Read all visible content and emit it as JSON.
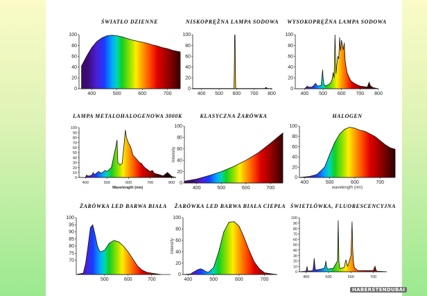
{
  "watermark": "HABERSTENDUBAI",
  "chart_data": [
    {
      "id": "c1",
      "type": "area",
      "title": "ŚWIATŁO DZIENNE",
      "xlabel": "",
      "ylabel": "",
      "xlim": [
        350,
        750
      ],
      "ylim": [
        0,
        100
      ],
      "xticks": [
        400,
        500,
        600,
        700
      ],
      "yticks": [
        0,
        20,
        40,
        60,
        80,
        100
      ],
      "series": [
        {
          "x": [
            360,
            380,
            400,
            420,
            440,
            460,
            480,
            500,
            520,
            540,
            560,
            580,
            600,
            620,
            640,
            660,
            680,
            700,
            720,
            740,
            750
          ],
          "values": [
            42,
            60,
            76,
            87,
            94,
            98,
            99,
            98,
            96,
            93,
            90,
            88,
            86,
            84,
            81,
            79,
            76,
            74,
            71,
            69,
            68
          ]
        }
      ]
    },
    {
      "id": "c2",
      "type": "area",
      "title": "NISKOPRĘŻNA LAMPA SODOWA",
      "xlabel": "",
      "ylabel": "",
      "xlim": [
        350,
        800
      ],
      "ylim": [
        0,
        100
      ],
      "xticks": [
        400,
        500,
        600,
        700,
        800
      ],
      "yticks": [
        0,
        20,
        40,
        60,
        80,
        100
      ],
      "series": [
        {
          "x": [
            350,
            585,
            587,
            589,
            590,
            591,
            593,
            595,
            760,
            765,
            768,
            771,
            775,
            800
          ],
          "values": [
            0.5,
            0.5,
            30,
            98,
            100,
            98,
            30,
            0.5,
            0.5,
            1.5,
            2.5,
            1.5,
            0.5,
            0.5
          ]
        }
      ]
    },
    {
      "id": "c3",
      "type": "area",
      "title": "WYSOKOPRĘŻNA LAMPA SODOWA",
      "xlabel": "",
      "ylabel": "",
      "xlim": [
        350,
        800
      ],
      "ylim": [
        0,
        100
      ],
      "xticks": [
        400,
        500,
        600,
        700,
        800
      ],
      "yticks": [
        0,
        20,
        40,
        60,
        80,
        100
      ],
      "series": [
        {
          "x": [
            350,
            400,
            410,
            415,
            420,
            440,
            450,
            455,
            460,
            465,
            470,
            490,
            495,
            498,
            500,
            505,
            510,
            515,
            520,
            540,
            550,
            555,
            560,
            565,
            570,
            575,
            580,
            585,
            590,
            595,
            600,
            605,
            610,
            615,
            620,
            625,
            630,
            640,
            650,
            660,
            680,
            700,
            720,
            740,
            745,
            750,
            755,
            770,
            800
          ],
          "values": [
            0,
            0,
            3,
            5,
            3,
            3,
            6,
            8,
            10,
            7,
            5,
            6,
            25,
            35,
            22,
            8,
            6,
            5,
            6,
            10,
            18,
            30,
            20,
            100,
            28,
            45,
            60,
            55,
            95,
            70,
            90,
            80,
            72,
            85,
            50,
            40,
            30,
            22,
            15,
            12,
            8,
            5,
            4,
            3,
            8,
            12,
            6,
            2,
            0
          ]
        }
      ]
    },
    {
      "id": "c4",
      "type": "area",
      "title": "LAMPA METALOHALOGENOWA 3000K",
      "xlabel": "Wavelength (nm)",
      "ylabel": "",
      "xlim": [
        370,
        820
      ],
      "ylim": [
        0,
        100
      ],
      "xticks": [
        400,
        500,
        600,
        700,
        800
      ],
      "yticks": [
        0,
        10,
        20,
        30,
        40,
        50,
        60,
        70,
        80,
        90,
        100
      ],
      "series": [
        {
          "x": [
            370,
            400,
            405,
            410,
            420,
            430,
            436,
            440,
            450,
            460,
            470,
            480,
            490,
            500,
            510,
            520,
            530,
            535,
            540,
            546,
            550,
            560,
            570,
            575,
            580,
            585,
            590,
            600,
            605,
            610,
            620,
            630,
            640,
            650,
            660,
            670,
            680,
            690,
            700,
            710,
            720,
            740,
            760,
            780,
            800,
            820
          ],
          "values": [
            0,
            0,
            5,
            3,
            3,
            5,
            10,
            6,
            8,
            12,
            9,
            10,
            14,
            12,
            16,
            20,
            40,
            50,
            60,
            75,
            30,
            25,
            28,
            50,
            70,
            95,
            80,
            68,
            65,
            60,
            45,
            40,
            35,
            30,
            28,
            22,
            18,
            15,
            12,
            14,
            8,
            6,
            3,
            10,
            2,
            0
          ]
        }
      ]
    },
    {
      "id": "c5",
      "type": "area",
      "title": "KLASYCZNA ŻARÓWKA",
      "xlabel": "",
      "ylabel": "Intensity",
      "xlim": [
        350,
        750
      ],
      "ylim": [
        0,
        100
      ],
      "xticks": [
        400,
        500,
        600,
        700
      ],
      "yticks": [
        0,
        20,
        40,
        60,
        80,
        100
      ],
      "series": [
        {
          "x": [
            350,
            400,
            450,
            500,
            550,
            600,
            650,
            700,
            750
          ],
          "values": [
            3,
            7,
            13,
            20,
            29,
            40,
            53,
            70,
            88
          ]
        }
      ]
    },
    {
      "id": "c6",
      "type": "area",
      "title": "HALOGEN",
      "xlabel": "wavelength (nm)",
      "ylabel": "",
      "xlim": [
        380,
        760
      ],
      "ylim": [
        0,
        100
      ],
      "xticks": [
        400,
        500,
        600,
        700
      ],
      "yticks": [
        0,
        20,
        40,
        60,
        80,
        100
      ],
      "series": [
        {
          "x": [
            380,
            420,
            450,
            480,
            500,
            520,
            540,
            560,
            580,
            600,
            620,
            640,
            660,
            680,
            700,
            720,
            740,
            760
          ],
          "values": [
            0,
            2,
            6,
            20,
            45,
            68,
            85,
            94,
            98,
            96,
            92,
            90,
            85,
            80,
            72,
            64,
            58,
            55
          ]
        }
      ]
    },
    {
      "id": "c7",
      "type": "area",
      "title": "ŻARÓWKA LED BARWA BIAŁA",
      "xlabel": "",
      "ylabel": "",
      "xlim": [
        380,
        780
      ],
      "ylim": [
        60,
        100
      ],
      "xticks": [
        500,
        600,
        700
      ],
      "yticks": [
        70,
        75,
        80,
        85,
        90,
        95,
        100
      ],
      "series": [
        {
          "x": [
            380,
            410,
            420,
            430,
            440,
            450,
            460,
            470,
            480,
            500,
            520,
            540,
            560,
            580,
            600,
            620,
            640,
            660,
            680,
            700,
            720,
            740
          ],
          "values": [
            60,
            61,
            68,
            80,
            93,
            95,
            88,
            80,
            76,
            77,
            82,
            84,
            83,
            80,
            76,
            71,
            66,
            63,
            61.5,
            61,
            60.5,
            60
          ]
        }
      ]
    },
    {
      "id": "c8",
      "type": "area",
      "title": "ŻARÓWKA LED BARWA BIAŁA CIEPŁA",
      "xlabel": "",
      "ylabel": "Intensity",
      "xlim": [
        380,
        750
      ],
      "ylim": [
        0,
        100
      ],
      "xticks": [
        400,
        500,
        600,
        700
      ],
      "yticks": [
        0,
        20,
        40,
        60,
        80,
        100
      ],
      "series": [
        {
          "x": [
            380,
            410,
            420,
            440,
            450,
            460,
            470,
            480,
            500,
            520,
            540,
            560,
            580,
            600,
            620,
            640,
            660,
            680,
            700,
            730,
            750
          ],
          "values": [
            0,
            1,
            4,
            9,
            10,
            8,
            5,
            4,
            12,
            40,
            75,
            92,
            93,
            85,
            65,
            42,
            22,
            10,
            3,
            1,
            0
          ]
        }
      ]
    },
    {
      "id": "c9",
      "type": "area",
      "title": "ŚWIETLÓWKA, FLUORESCENCYJNA",
      "xlabel": "",
      "ylabel": "",
      "xlim": [
        370,
        760
      ],
      "ylim": [
        0,
        100
      ],
      "xticks": [
        400,
        500,
        600,
        700
      ],
      "yticks": [
        0,
        10,
        20,
        30,
        40,
        50,
        60,
        70,
        80,
        90,
        100
      ],
      "series": [
        {
          "x": [
            370,
            400,
            404,
            406,
            408,
            430,
            433,
            436,
            439,
            442,
            480,
            485,
            488,
            491,
            495,
            520,
            540,
            543,
            546,
            549,
            552,
            570,
            575,
            578,
            581,
            585,
            600,
            605,
            608,
            611,
            615,
            630,
            700,
            705,
            708,
            711,
            715,
            760
          ],
          "values": [
            0,
            1,
            10,
            3,
            1,
            2,
            12,
            25,
            10,
            3,
            6,
            12,
            20,
            10,
            5,
            6,
            20,
            95,
            20,
            8,
            6,
            8,
            18,
            22,
            15,
            10,
            30,
            93,
            40,
            18,
            8,
            2,
            2,
            8,
            10,
            4,
            1,
            0
          ]
        }
      ]
    }
  ]
}
